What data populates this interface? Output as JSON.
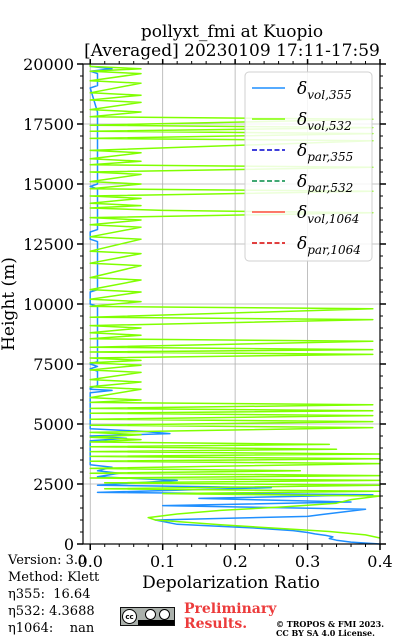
{
  "chart_data": {
    "type": "line",
    "title": "pollyxt_fmi at Kuopio",
    "subtitle": "[Averaged] 20230109 17:11-17:59",
    "xlabel": "Depolarization Ratio",
    "ylabel": "Height (m)",
    "xlim": [
      -0.01,
      0.4
    ],
    "ylim": [
      0,
      20000
    ],
    "xticks": [
      "0.0",
      "0.1",
      "0.2",
      "0.3",
      "0.4"
    ],
    "yticks": [
      "0",
      "2500",
      "5000",
      "7500",
      "10000",
      "12500",
      "15000",
      "17500",
      "20000"
    ],
    "grid": true,
    "legend_position": "top-right",
    "legend": [
      {
        "label": "δvol,355",
        "main": "δ",
        "sub": "vol,355",
        "color": "#1f8fff",
        "dash": "solid"
      },
      {
        "label": "δvol,532",
        "main": "δ",
        "sub": "vol,532",
        "color": "#80ff00",
        "dash": "solid"
      },
      {
        "label": "δpar,355",
        "main": "δ",
        "sub": "par,355",
        "color": "#0000cd",
        "dash": "dashed"
      },
      {
        "label": "δpar,532",
        "main": "δ",
        "sub": "par,532",
        "color": "#008b45",
        "dash": "dashed"
      },
      {
        "label": "δvol,1064",
        "main": "δ",
        "sub": "vol,1064",
        "color": "#ff4d3d",
        "dash": "solid"
      },
      {
        "label": "δpar,1064",
        "main": "δ",
        "sub": "par,1064",
        "color": "#d90000",
        "dash": "dashed"
      }
    ],
    "series": [
      {
        "name": "δvol,355",
        "color": "#1f8fff",
        "points": [
          [
            0.4,
            0
          ],
          [
            0.36,
            80
          ],
          [
            0.34,
            160
          ],
          [
            0.33,
            230
          ],
          [
            0.335,
            300
          ],
          [
            0.325,
            360
          ],
          [
            0.31,
            420
          ],
          [
            0.3,
            480
          ],
          [
            0.28,
            560
          ],
          [
            0.22,
            680
          ],
          [
            0.12,
            820
          ],
          [
            0.09,
            1000
          ],
          [
            0.3,
            1150
          ],
          [
            0.32,
            1230
          ],
          [
            0.38,
            1450
          ],
          [
            0.1,
            1600
          ],
          [
            0.36,
            1750
          ],
          [
            0.15,
            1900
          ],
          [
            0.39,
            2050
          ],
          [
            0.01,
            2150
          ],
          [
            0.25,
            2350
          ],
          [
            0.01,
            2450
          ],
          [
            0.12,
            2650
          ],
          [
            0.01,
            2800
          ],
          [
            0.04,
            2950
          ],
          [
            0.01,
            3050
          ],
          [
            0.03,
            3200
          ],
          [
            0.0,
            3300
          ],
          [
            0.0,
            4300
          ],
          [
            0.05,
            4400
          ],
          [
            0.0,
            4500
          ],
          [
            0.11,
            4600
          ],
          [
            0.07,
            4700
          ],
          [
            0.0,
            4800
          ],
          [
            0.0,
            6300
          ],
          [
            0.03,
            6400
          ],
          [
            0.0,
            6450
          ],
          [
            0.0,
            6500
          ],
          [
            0.01,
            6600
          ],
          [
            0.01,
            7200
          ],
          [
            0.0,
            7300
          ],
          [
            0.01,
            7400
          ],
          [
            0.0,
            7500
          ],
          [
            0.01,
            7600
          ],
          [
            0.01,
            9900
          ],
          [
            0.0,
            10000
          ],
          [
            0.0,
            10500
          ],
          [
            0.01,
            10600
          ],
          [
            0.01,
            12600
          ],
          [
            0.0,
            12700
          ],
          [
            0.0,
            13000
          ],
          [
            0.01,
            13100
          ],
          [
            0.01,
            14800
          ],
          [
            0.0,
            14900
          ],
          [
            0.01,
            15000
          ],
          [
            0.01,
            18000
          ],
          [
            0.0,
            19000
          ],
          [
            0.01,
            19100
          ],
          [
            0.01,
            19600
          ],
          [
            0.0,
            19700
          ],
          [
            0.03,
            19800
          ],
          [
            0.0,
            19900
          ],
          [
            0.0,
            20000
          ]
        ]
      },
      {
        "name": "δvol,532",
        "color": "#80ff00",
        "points": [
          [
            0.4,
            250
          ],
          [
            0.38,
            380
          ],
          [
            0.33,
            520
          ],
          [
            0.26,
            650
          ],
          [
            0.18,
            800
          ],
          [
            0.09,
            1000
          ],
          [
            0.08,
            1100
          ],
          [
            0.12,
            1250
          ],
          [
            0.18,
            1400
          ],
          [
            0.27,
            1550
          ],
          [
            0.34,
            1700
          ],
          [
            0.36,
            1850
          ],
          [
            0.4,
            2000
          ],
          [
            0.1,
            2100
          ],
          [
            0.4,
            2200
          ],
          [
            0.02,
            2300
          ],
          [
            0.4,
            2450
          ],
          [
            0.02,
            2550
          ],
          [
            0.4,
            2650
          ],
          [
            0.0,
            2750
          ],
          [
            0.4,
            2850
          ],
          [
            0.0,
            2950
          ],
          [
            0.29,
            3050
          ],
          [
            0.0,
            3150
          ],
          [
            0.4,
            3350
          ],
          [
            0.0,
            3450
          ],
          [
            0.4,
            3550
          ],
          [
            0.0,
            3650
          ],
          [
            0.4,
            3750
          ],
          [
            0.0,
            3850
          ],
          [
            0.34,
            3950
          ],
          [
            0.0,
            4050
          ],
          [
            0.33,
            4150
          ],
          [
            0.0,
            4250
          ],
          [
            0.07,
            4350
          ],
          [
            0.0,
            4450
          ],
          [
            0.07,
            4550
          ],
          [
            0.0,
            4650
          ],
          [
            0.39,
            4850
          ],
          [
            0.0,
            4950
          ],
          [
            0.39,
            5100
          ],
          [
            0.0,
            5200
          ],
          [
            0.39,
            5350
          ],
          [
            0.0,
            5450
          ],
          [
            0.39,
            5550
          ],
          [
            0.0,
            5650
          ],
          [
            0.39,
            5800
          ],
          [
            0.0,
            5900
          ],
          [
            0.07,
            6000
          ],
          [
            0.0,
            6100
          ],
          [
            0.07,
            6450
          ],
          [
            0.0,
            6550
          ],
          [
            0.07,
            6750
          ],
          [
            0.0,
            6850
          ],
          [
            0.07,
            7150
          ],
          [
            0.0,
            7250
          ],
          [
            0.07,
            7450
          ],
          [
            0.0,
            7550
          ],
          [
            0.07,
            7650
          ],
          [
            0.0,
            7750
          ],
          [
            0.39,
            7900
          ],
          [
            0.0,
            8000
          ],
          [
            0.39,
            8100
          ],
          [
            0.0,
            8200
          ],
          [
            0.39,
            8450
          ],
          [
            0.0,
            8550
          ],
          [
            0.07,
            8700
          ],
          [
            0.0,
            8800
          ],
          [
            0.07,
            9000
          ],
          [
            0.0,
            9100
          ],
          [
            0.39,
            9350
          ],
          [
            0.0,
            9450
          ],
          [
            0.39,
            9800
          ],
          [
            0.0,
            9900
          ],
          [
            0.07,
            10100
          ],
          [
            0.0,
            10200
          ],
          [
            0.07,
            10500
          ],
          [
            0.0,
            10600
          ],
          [
            0.07,
            11000
          ],
          [
            0.0,
            11100
          ],
          [
            0.07,
            11600
          ],
          [
            0.0,
            11700
          ],
          [
            0.07,
            12100
          ],
          [
            0.0,
            12200
          ],
          [
            0.07,
            12700
          ],
          [
            0.0,
            12800
          ],
          [
            0.07,
            13200
          ],
          [
            0.0,
            13300
          ],
          [
            0.07,
            13500
          ],
          [
            0.0,
            13600
          ],
          [
            0.39,
            13800
          ],
          [
            0.1,
            13900
          ],
          [
            0.0,
            14000
          ],
          [
            0.07,
            14100
          ],
          [
            0.0,
            14200
          ],
          [
            0.07,
            14400
          ],
          [
            0.0,
            14500
          ],
          [
            0.39,
            14700
          ],
          [
            0.0,
            14800
          ],
          [
            0.07,
            15000
          ],
          [
            0.0,
            15100
          ],
          [
            0.07,
            15400
          ],
          [
            0.0,
            15500
          ],
          [
            0.39,
            15700
          ],
          [
            0.0,
            15800
          ],
          [
            0.07,
            15950
          ],
          [
            0.0,
            16050
          ],
          [
            0.07,
            16300
          ],
          [
            0.0,
            16400
          ],
          [
            0.39,
            16800
          ],
          [
            0.0,
            16900
          ],
          [
            0.39,
            17100
          ],
          [
            0.0,
            17200
          ],
          [
            0.39,
            17350
          ],
          [
            0.0,
            17450
          ],
          [
            0.39,
            17700
          ],
          [
            0.0,
            17800
          ],
          [
            0.07,
            18000
          ],
          [
            0.0,
            18100
          ],
          [
            0.07,
            18400
          ],
          [
            0.0,
            18500
          ],
          [
            0.07,
            18700
          ],
          [
            0.0,
            18800
          ],
          [
            0.07,
            19200
          ],
          [
            0.0,
            19300
          ],
          [
            0.07,
            19600
          ],
          [
            0.0,
            19700
          ],
          [
            0.07,
            19800
          ],
          [
            0.0,
            19900
          ],
          [
            0.0,
            20000
          ]
        ]
      }
    ]
  },
  "notes": {
    "version": "Version: 3.0",
    "method": "Method: Klett",
    "eta355_label": "η355:",
    "eta355_value": "16.64",
    "eta532_label": "η532:",
    "eta532_value": "4.3688",
    "eta1064_label": "η1064:",
    "eta1064_value": "nan"
  },
  "footer": {
    "license_badge_text": "CC BY SA",
    "preliminary_line1": "Preliminary",
    "preliminary_line2": "Results.",
    "copyright_line1": "© TROPOS & FMI 2023.",
    "copyright_line2": "CC BY SA 4.0 License."
  }
}
